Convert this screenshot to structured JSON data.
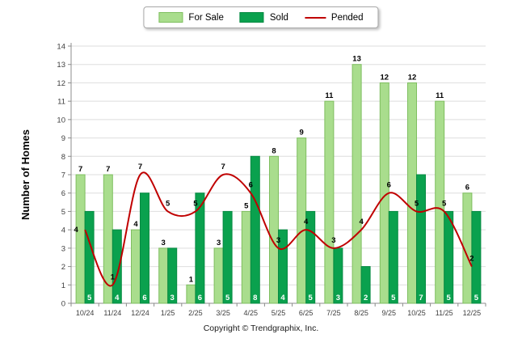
{
  "legend": {
    "items": [
      {
        "label": "For Sale",
        "type": "box",
        "color": "#a9dd8d",
        "border": "#7fbf60"
      },
      {
        "label": "Sold",
        "type": "box",
        "color": "#0aa14e",
        "border": "#078a43"
      },
      {
        "label": "Pended",
        "type": "line",
        "color": "#c00000"
      }
    ]
  },
  "chart_data": {
    "type": "bar",
    "title": "",
    "xlabel": "",
    "ylabel": "Number of Homes",
    "ylim": [
      0,
      14
    ],
    "ytick_interval": 1,
    "grid": true,
    "legend_position": "top-center",
    "categories": [
      "10/24",
      "11/24",
      "12/24",
      "1/25",
      "2/25",
      "3/25",
      "4/25",
      "5/25",
      "6/25",
      "7/25",
      "8/25",
      "9/25",
      "10/25",
      "11/25",
      "12/25"
    ],
    "series": [
      {
        "name": "For Sale",
        "type": "bar",
        "color": "#a9dd8d",
        "stroke": "#7fbf60",
        "values": [
          7,
          7,
          4,
          3,
          1,
          3,
          5,
          8,
          9,
          11,
          13,
          12,
          12,
          11,
          6
        ]
      },
      {
        "name": "Sold",
        "type": "bar",
        "color": "#0aa14e",
        "stroke": "#078a43",
        "values": [
          5,
          4,
          6,
          3,
          6,
          5,
          8,
          4,
          5,
          3,
          2,
          5,
          7,
          5,
          5
        ]
      },
      {
        "name": "Pended",
        "type": "line",
        "color": "#c00000",
        "values": [
          4,
          1,
          7,
          5,
          5,
          7,
          6,
          3,
          4,
          3,
          4,
          6,
          5,
          5,
          2
        ]
      }
    ]
  },
  "footer": {
    "copyright": "Copyright © Trendgraphix, Inc."
  }
}
